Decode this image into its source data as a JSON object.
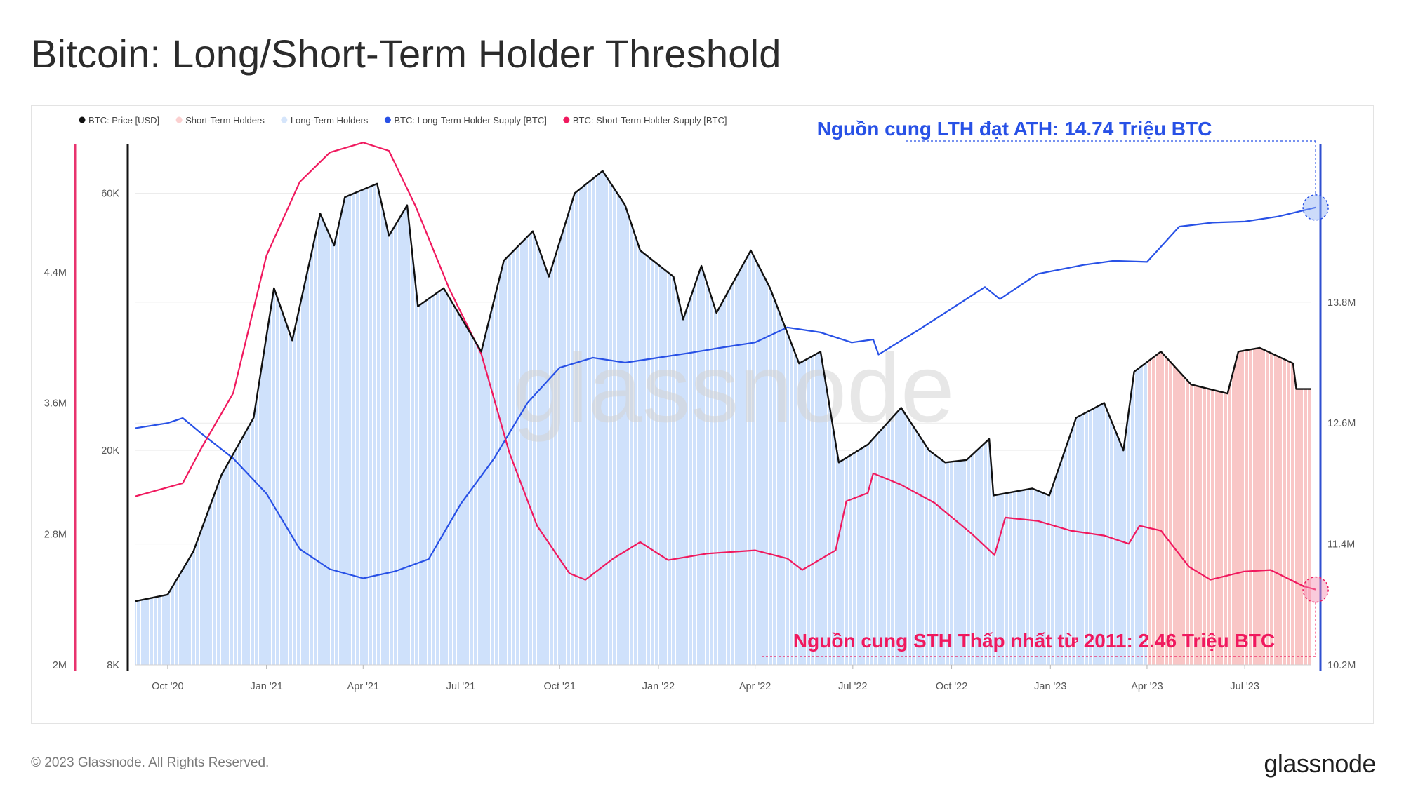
{
  "title": "Bitcoin: Long/Short-Term Holder Threshold",
  "footer": {
    "copyright": "© 2023 Glassnode. All Rights Reserved.",
    "logo": "glassnode"
  },
  "watermark": "glassnode",
  "colors": {
    "price": "#111111",
    "sth_band": "#f9c6c6",
    "lth_band": "#cfe1fb",
    "lth_supply": "#2851e6",
    "sth_supply": "#f0195e",
    "sth_axis": "#e8336e",
    "lth_axis": "#2f4fd0"
  },
  "chart_data": {
    "type": "line",
    "x_format": "YYYY-MM",
    "x_range": [
      "2020-09",
      "2023-09"
    ],
    "legend": {
      "placement": "top-left",
      "entries": [
        {
          "label": "BTC: Price [USD]",
          "color": "#111111"
        },
        {
          "label": "Short-Term Holders",
          "color": "#fbd0d0"
        },
        {
          "label": "Long-Term Holders",
          "color": "#d5e5fb"
        },
        {
          "label": "BTC: Long-Term Holder Supply [BTC]",
          "color": "#2851e6"
        },
        {
          "label": "BTC: Short-Term Holder Supply [BTC]",
          "color": "#f0195e"
        }
      ]
    },
    "x_ticks": [
      {
        "date": "2020-10",
        "label": "Oct '20"
      },
      {
        "date": "2021-01",
        "label": "Jan '21"
      },
      {
        "date": "2021-04",
        "label": "Apr '21"
      },
      {
        "date": "2021-07",
        "label": "Jul '21"
      },
      {
        "date": "2021-10",
        "label": "Oct '21"
      },
      {
        "date": "2022-01",
        "label": "Jan '22"
      },
      {
        "date": "2022-04",
        "label": "Apr '22"
      },
      {
        "date": "2022-07",
        "label": "Jul '22"
      },
      {
        "date": "2022-10",
        "label": "Oct '22"
      },
      {
        "date": "2023-01",
        "label": "Jan '23"
      },
      {
        "date": "2023-04",
        "label": "Apr '23"
      },
      {
        "date": "2023-07",
        "label": "Jul '23"
      }
    ],
    "axes": {
      "sth_supply": {
        "position": "left-outer",
        "scale": "linear",
        "range": [
          2000000,
          5200000
        ],
        "ticks": [
          {
            "v": 2000000,
            "label": "2M"
          },
          {
            "v": 2800000,
            "label": "2.8M"
          },
          {
            "v": 3600000,
            "label": "3.6M"
          },
          {
            "v": 4400000,
            "label": "4.4M"
          }
        ]
      },
      "price": {
        "position": "left-inner",
        "scale": "log",
        "range": [
          8000,
          75000
        ],
        "ticks": [
          {
            "v": 8000,
            "label": "8K"
          },
          {
            "v": 20000,
            "label": "20K"
          },
          {
            "v": 60000,
            "label": "60K"
          }
        ]
      },
      "lth_supply": {
        "position": "right",
        "scale": "linear",
        "range": [
          10200000,
          15400000
        ],
        "ticks": [
          {
            "v": 10200000,
            "label": "10.2M"
          },
          {
            "v": 11400000,
            "label": "11.4M"
          },
          {
            "v": 12600000,
            "label": "12.6M"
          },
          {
            "v": 13800000,
            "label": "13.8M"
          }
        ]
      }
    },
    "grid": true,
    "regime_bands": [
      {
        "series": "Long-Term Holders",
        "from": "2020-09",
        "to": "2023-04"
      },
      {
        "series": "Short-Term Holders",
        "from": "2023-04",
        "to": "2023-09"
      }
    ],
    "series": [
      {
        "name": "BTC: Price [USD]",
        "axis": "price",
        "points": [
          [
            "2020-09-01",
            10500
          ],
          [
            "2020-10-01",
            10800
          ],
          [
            "2020-10-25",
            13000
          ],
          [
            "2020-11-20",
            18000
          ],
          [
            "2020-12-20",
            23000
          ],
          [
            "2021-01-08",
            40000
          ],
          [
            "2021-01-25",
            32000
          ],
          [
            "2021-02-20",
            55000
          ],
          [
            "2021-03-05",
            48000
          ],
          [
            "2021-03-15",
            59000
          ],
          [
            "2021-04-14",
            62500
          ],
          [
            "2021-04-25",
            50000
          ],
          [
            "2021-05-12",
            57000
          ],
          [
            "2021-05-22",
            37000
          ],
          [
            "2021-06-15",
            40000
          ],
          [
            "2021-07-20",
            30500
          ],
          [
            "2021-08-10",
            45000
          ],
          [
            "2021-09-06",
            51000
          ],
          [
            "2021-09-21",
            42000
          ],
          [
            "2021-10-15",
            60000
          ],
          [
            "2021-11-10",
            66000
          ],
          [
            "2021-12-01",
            57000
          ],
          [
            "2021-12-15",
            47000
          ],
          [
            "2022-01-15",
            42000
          ],
          [
            "2022-01-24",
            35000
          ],
          [
            "2022-02-10",
            44000
          ],
          [
            "2022-02-24",
            36000
          ],
          [
            "2022-03-28",
            47000
          ],
          [
            "2022-04-15",
            40000
          ],
          [
            "2022-05-12",
            29000
          ],
          [
            "2022-06-01",
            30500
          ],
          [
            "2022-06-18",
            19000
          ],
          [
            "2022-07-15",
            20500
          ],
          [
            "2022-08-15",
            24000
          ],
          [
            "2022-09-10",
            20000
          ],
          [
            "2022-09-25",
            19000
          ],
          [
            "2022-10-15",
            19200
          ],
          [
            "2022-11-05",
            21000
          ],
          [
            "2022-11-09",
            16500
          ],
          [
            "2022-12-15",
            17000
          ],
          [
            "2022-12-31",
            16500
          ],
          [
            "2023-01-25",
            23000
          ],
          [
            "2023-02-20",
            24500
          ],
          [
            "2023-03-10",
            20000
          ],
          [
            "2023-03-20",
            28000
          ],
          [
            "2023-04-14",
            30500
          ],
          [
            "2023-05-12",
            26500
          ],
          [
            "2023-06-15",
            25500
          ],
          [
            "2023-06-25",
            30500
          ],
          [
            "2023-07-15",
            31000
          ],
          [
            "2023-08-15",
            29000
          ],
          [
            "2023-08-18",
            26000
          ],
          [
            "2023-09-01",
            26000
          ]
        ]
      },
      {
        "name": "BTC: Short-Term Holder Supply [BTC]",
        "axis": "sth_supply",
        "points": [
          [
            "2020-09-01",
            3030000
          ],
          [
            "2020-10-15",
            3110000
          ],
          [
            "2020-11-01",
            3320000
          ],
          [
            "2020-12-01",
            3660000
          ],
          [
            "2021-01-01",
            4500000
          ],
          [
            "2021-02-01",
            4950000
          ],
          [
            "2021-03-01",
            5130000
          ],
          [
            "2021-04-01",
            5190000
          ],
          [
            "2021-04-25",
            5140000
          ],
          [
            "2021-05-20",
            4800000
          ],
          [
            "2021-06-20",
            4300000
          ],
          [
            "2021-07-20",
            3900000
          ],
          [
            "2021-08-15",
            3300000
          ],
          [
            "2021-09-10",
            2850000
          ],
          [
            "2021-10-10",
            2560000
          ],
          [
            "2021-10-25",
            2520000
          ],
          [
            "2021-11-20",
            2650000
          ],
          [
            "2021-12-15",
            2750000
          ],
          [
            "2022-01-10",
            2640000
          ],
          [
            "2022-02-15",
            2680000
          ],
          [
            "2022-04-01",
            2700000
          ],
          [
            "2022-05-01",
            2650000
          ],
          [
            "2022-05-15",
            2580000
          ],
          [
            "2022-06-15",
            2700000
          ],
          [
            "2022-06-25",
            3000000
          ],
          [
            "2022-07-15",
            3050000
          ],
          [
            "2022-07-20",
            3170000
          ],
          [
            "2022-08-15",
            3100000
          ],
          [
            "2022-09-15",
            2990000
          ],
          [
            "2022-10-20",
            2800000
          ],
          [
            "2022-11-10",
            2670000
          ],
          [
            "2022-11-20",
            2900000
          ],
          [
            "2022-12-20",
            2880000
          ],
          [
            "2023-01-20",
            2820000
          ],
          [
            "2023-02-20",
            2790000
          ],
          [
            "2023-03-15",
            2740000
          ],
          [
            "2023-03-25",
            2850000
          ],
          [
            "2023-04-14",
            2820000
          ],
          [
            "2023-05-10",
            2600000
          ],
          [
            "2023-05-30",
            2520000
          ],
          [
            "2023-06-30",
            2570000
          ],
          [
            "2023-07-25",
            2580000
          ],
          [
            "2023-08-25",
            2480000
          ],
          [
            "2023-09-05",
            2460000
          ]
        ]
      },
      {
        "name": "BTC: Long-Term Holder Supply [BTC]",
        "axis": "lth_supply",
        "points": [
          [
            "2020-09-01",
            12550000
          ],
          [
            "2020-10-01",
            12600000
          ],
          [
            "2020-10-15",
            12650000
          ],
          [
            "2020-11-01",
            12500000
          ],
          [
            "2020-12-01",
            12250000
          ],
          [
            "2021-01-01",
            11900000
          ],
          [
            "2021-02-01",
            11350000
          ],
          [
            "2021-03-01",
            11150000
          ],
          [
            "2021-04-01",
            11060000
          ],
          [
            "2021-05-01",
            11130000
          ],
          [
            "2021-06-01",
            11250000
          ],
          [
            "2021-07-01",
            11800000
          ],
          [
            "2021-08-01",
            12250000
          ],
          [
            "2021-09-01",
            12800000
          ],
          [
            "2021-10-01",
            13150000
          ],
          [
            "2021-11-01",
            13250000
          ],
          [
            "2021-12-01",
            13200000
          ],
          [
            "2022-01-01",
            13250000
          ],
          [
            "2022-02-01",
            13300000
          ],
          [
            "2022-03-01",
            13350000
          ],
          [
            "2022-04-01",
            13400000
          ],
          [
            "2022-05-01",
            13550000
          ],
          [
            "2022-06-01",
            13500000
          ],
          [
            "2022-06-30",
            13400000
          ],
          [
            "2022-07-20",
            13430000
          ],
          [
            "2022-07-25",
            13280000
          ],
          [
            "2022-09-01",
            13530000
          ],
          [
            "2022-11-01",
            13950000
          ],
          [
            "2022-11-15",
            13830000
          ],
          [
            "2022-12-20",
            14080000
          ],
          [
            "2023-02-01",
            14170000
          ],
          [
            "2023-03-01",
            14210000
          ],
          [
            "2023-04-01",
            14200000
          ],
          [
            "2023-05-01",
            14550000
          ],
          [
            "2023-06-01",
            14590000
          ],
          [
            "2023-07-01",
            14600000
          ],
          [
            "2023-08-01",
            14650000
          ],
          [
            "2023-09-05",
            14740000
          ]
        ]
      }
    ],
    "annotations": [
      {
        "label": "Nguồn cung LTH đạt ATH: 14.74 Triệu BTC",
        "color": "#2851e6",
        "series": "BTC: Long-Term Holder Supply [BTC]",
        "date": "2023-09-05",
        "value": 14740000
      },
      {
        "label": "Nguồn cung STH Thấp nhất từ 2011: 2.46 Triệu BTC",
        "color": "#f0195e",
        "series": "BTC: Short-Term Holder Supply [BTC]",
        "date": "2023-09-05",
        "value": 2460000
      }
    ]
  }
}
